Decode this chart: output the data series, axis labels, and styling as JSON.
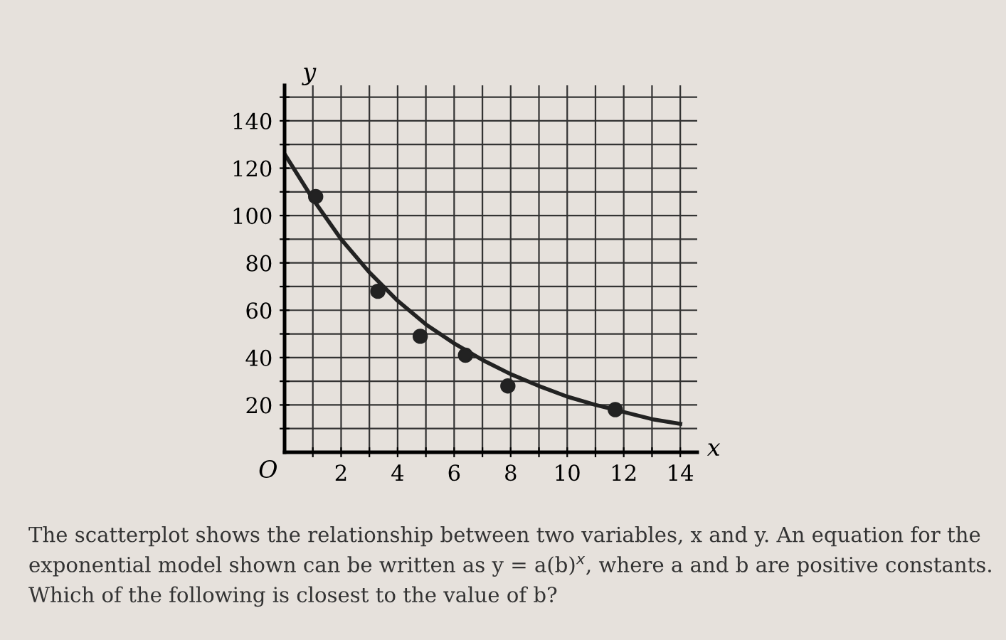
{
  "chart_data": {
    "type": "scatter",
    "xlabel": "x",
    "ylabel": "y",
    "x": [
      1.1,
      3.3,
      4.8,
      6.4,
      7.9,
      11.7
    ],
    "series": [
      {
        "color": "#222222",
        "values": [
          108,
          68,
          49,
          41,
          28,
          18
        ],
        "marker": "circle"
      },
      {
        "type": "line",
        "color": "#222222",
        "x": [
          0,
          1,
          2,
          3,
          4,
          5,
          6,
          7,
          8,
          9,
          10,
          11,
          12,
          13,
          14
        ],
        "values": [
          126,
          107,
          90,
          76,
          64,
          54,
          46,
          39,
          33,
          28,
          23.5,
          20,
          17,
          14,
          12
        ],
        "marker": "none"
      }
    ],
    "xlim": [
      0,
      14.6
    ],
    "ylim": [
      0,
      155
    ],
    "xticks": [
      {
        "value": 1,
        "label": null
      },
      2,
      {
        "value": 3,
        "label": null
      },
      4,
      {
        "value": 5,
        "label": null
      },
      6,
      {
        "value": 7,
        "label": null
      },
      8,
      {
        "value": 9,
        "label": null
      },
      10,
      {
        "value": 11,
        "label": null
      },
      12,
      {
        "value": 13,
        "label": null
      },
      14
    ],
    "yticks": [
      {
        "value": 10,
        "label": null
      },
      20,
      {
        "value": 30,
        "label": null
      },
      40,
      {
        "value": 50,
        "label": null
      },
      60,
      {
        "value": 70,
        "label": null
      },
      80,
      {
        "value": 90,
        "label": null
      },
      100,
      {
        "value": 110,
        "label": null
      },
      120,
      {
        "value": 130,
        "label": null
      },
      140,
      {
        "value": 150,
        "label": null
      }
    ],
    "grid": true,
    "annotations": [
      "O",
      "The scatterplot shows the relationship between two variables, x and y. An equation for the exponential model shown can be written as y = a(b)$^{x}$, where a and b are positive constants. Which of the following is closest to the value of b?"
    ]
  }
}
